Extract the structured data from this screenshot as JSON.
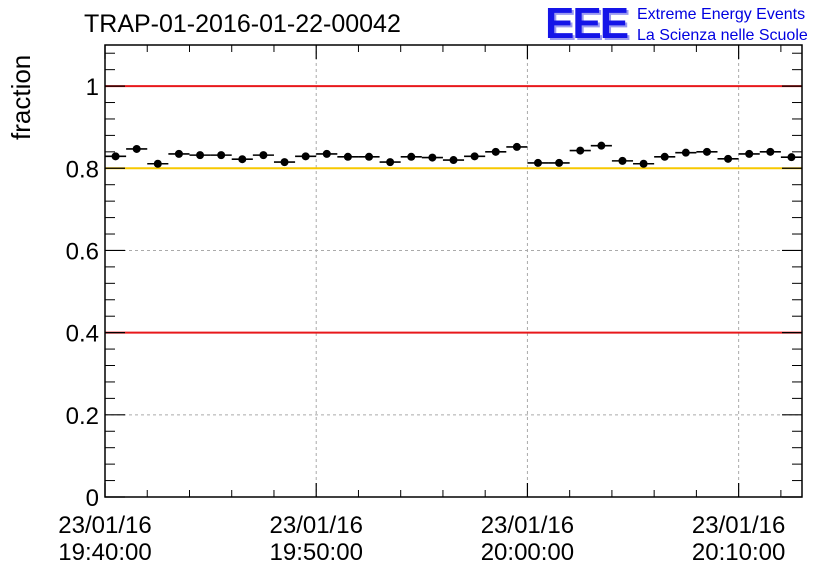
{
  "header": {
    "title": "TRAP-01-2016-01-22-00042",
    "logo_letters": "EEE",
    "logo_line1": "Extreme Energy Events",
    "logo_line2": "La Scienza nelle Scuole"
  },
  "colors": {
    "upper_limit": "#e8181b",
    "warning_limit": "#f7c800",
    "lower_limit": "#e8181b",
    "markers": "#000000",
    "grid": "#aaaaaa"
  },
  "chart_data": {
    "type": "scatter",
    "title": "TRAP-01-2016-01-22-00042",
    "xlabel": "",
    "ylabel": "fraction",
    "ylim": [
      0,
      1.1
    ],
    "xlim": [
      "23/01/16 19:40:00",
      "23/01/16 20:13:00"
    ],
    "grid": true,
    "x_ticks": [
      {
        "date": "23/01/16",
        "time": "19:40:00"
      },
      {
        "date": "23/01/16",
        "time": "19:50:00"
      },
      {
        "date": "23/01/16",
        "time": "20:00:00"
      },
      {
        "date": "23/01/16",
        "time": "20:10:00"
      }
    ],
    "y_ticks": [
      "0",
      "0.2",
      "0.4",
      "0.6",
      "0.8",
      "1"
    ],
    "y_tick_values": [
      0,
      0.2,
      0.4,
      0.6,
      0.8,
      1.0
    ],
    "reference_lines": [
      {
        "y": 1.0,
        "color": "#e8181b"
      },
      {
        "y": 0.8,
        "color": "#f7c800"
      },
      {
        "y": 0.4,
        "color": "#e8181b"
      }
    ],
    "bin_width_minutes": 1,
    "x": [
      "19:40:30",
      "19:41:30",
      "19:42:30",
      "19:43:30",
      "19:44:30",
      "19:45:30",
      "19:46:30",
      "19:47:30",
      "19:48:30",
      "19:49:30",
      "19:50:30",
      "19:51:30",
      "19:52:30",
      "19:53:30",
      "19:54:30",
      "19:55:30",
      "19:56:30",
      "19:57:30",
      "19:58:30",
      "19:59:30",
      "20:00:30",
      "20:01:30",
      "20:02:30",
      "20:03:30",
      "20:04:30",
      "20:05:30",
      "20:06:30",
      "20:07:30",
      "20:08:30",
      "20:09:30",
      "20:10:30",
      "20:11:30",
      "20:12:30"
    ],
    "values": [
      0.829,
      0.847,
      0.811,
      0.835,
      0.832,
      0.832,
      0.822,
      0.832,
      0.815,
      0.829,
      0.835,
      0.828,
      0.828,
      0.815,
      0.828,
      0.826,
      0.82,
      0.829,
      0.84,
      0.852,
      0.813,
      0.813,
      0.843,
      0.855,
      0.818,
      0.811,
      0.828,
      0.838,
      0.84,
      0.823,
      0.835,
      0.84,
      0.827
    ]
  }
}
